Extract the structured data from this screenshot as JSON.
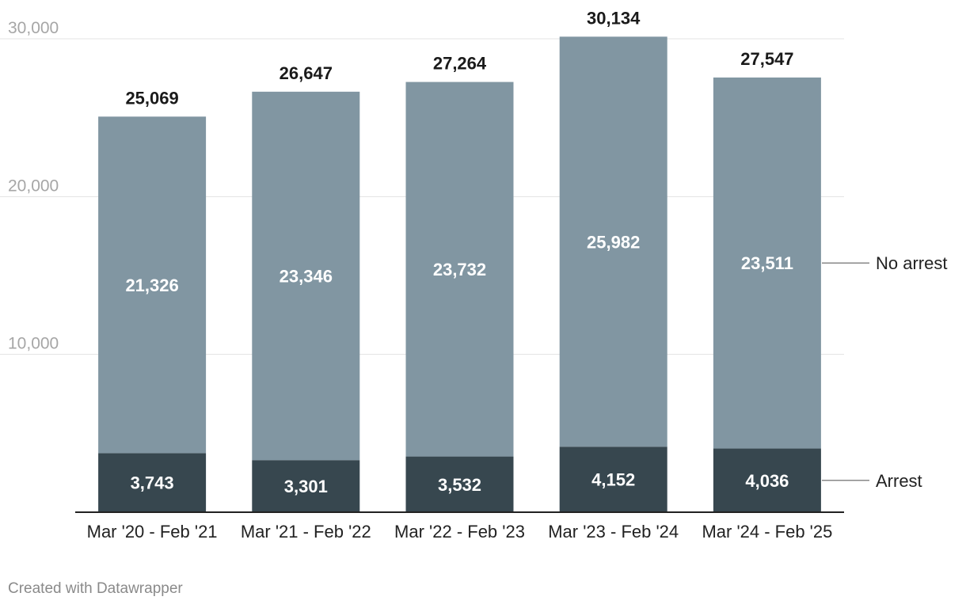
{
  "chart_data": {
    "type": "bar",
    "stacked": true,
    "categories": [
      "Mar '20 - Feb '21",
      "Mar '21 - Feb '22",
      "Mar '22 - Feb '23",
      "Mar '23 - Feb '24",
      "Mar '24 - Feb '25"
    ],
    "series": [
      {
        "name": "Arrest",
        "values": [
          3743,
          3301,
          3532,
          4152,
          4036
        ],
        "color": "#37474f"
      },
      {
        "name": "No arrest",
        "values": [
          21326,
          23346,
          23732,
          25982,
          23511
        ],
        "color": "#8196a2"
      }
    ],
    "totals": [
      25069,
      26647,
      27264,
      30134,
      27547
    ],
    "value_labels": {
      "Arrest": [
        "3,743",
        "3,301",
        "3,532",
        "4,152",
        "4,036"
      ],
      "No arrest": [
        "21,326",
        "23,346",
        "23,732",
        "25,982",
        "23,511"
      ],
      "totals": [
        "25,069",
        "26,647",
        "27,264",
        "30,134",
        "27,547"
      ]
    },
    "yticks": [
      10000,
      20000,
      30000
    ],
    "ytick_labels": [
      "10,000",
      "20,000",
      "30,000"
    ],
    "ylim": [
      0,
      30000
    ],
    "grid": true,
    "legend": "inline-right"
  },
  "footer": {
    "credit": "Created with Datawrapper"
  }
}
